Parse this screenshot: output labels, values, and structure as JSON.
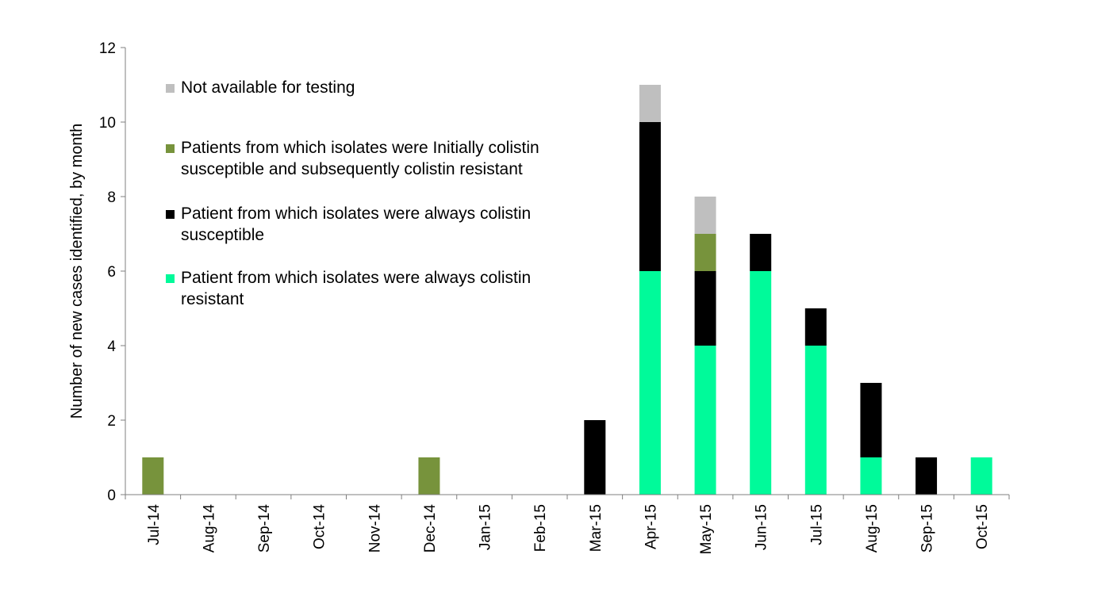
{
  "chart_data": {
    "type": "bar",
    "stacked": true,
    "title": "",
    "xlabel": "",
    "ylabel": "Number of new cases identified, by month",
    "ylim": [
      0,
      12
    ],
    "yticks": [
      0,
      2,
      4,
      6,
      8,
      10,
      12
    ],
    "grid": false,
    "legend_position": "top-left",
    "categories": [
      "Jul-14",
      "Aug-14",
      "Sep-14",
      "Oct-14",
      "Nov-14",
      "Dec-14",
      "Jan-15",
      "Feb-15",
      "Mar-15",
      "Apr-15",
      "May-15",
      "Jun-15",
      "Jul-15",
      "Aug-15",
      "Sep-15",
      "Oct-15"
    ],
    "series": [
      {
        "name": "Patient from which isolates were always colistin resistant",
        "color": "#00FA9A",
        "values": [
          0,
          0,
          0,
          0,
          0,
          0,
          0,
          0,
          0,
          6,
          4,
          6,
          4,
          1,
          0,
          1
        ]
      },
      {
        "name": "Patient from which isolates were always colistin susceptible",
        "color": "#000000",
        "values": [
          0,
          0,
          0,
          0,
          0,
          0,
          0,
          0,
          2,
          4,
          2,
          1,
          1,
          2,
          1,
          0
        ]
      },
      {
        "name": "Patients from which isolates were Initially colistin susceptible and subsequently colistin resistant",
        "color": "#77933C",
        "values": [
          1,
          0,
          0,
          0,
          0,
          1,
          0,
          0,
          0,
          0,
          1,
          0,
          0,
          0,
          0,
          0
        ]
      },
      {
        "name": "Not available for testing",
        "color": "#BFBFBF",
        "values": [
          0,
          0,
          0,
          0,
          0,
          0,
          0,
          0,
          0,
          1,
          1,
          0,
          0,
          0,
          0,
          0
        ]
      }
    ]
  },
  "legend": [
    {
      "color": "#BFBFBF",
      "lines": [
        "Not available for testing"
      ]
    },
    {
      "color": "#77933C",
      "lines": [
        "Patients from which isolates were Initially colistin",
        "susceptible and subsequently colistin resistant"
      ]
    },
    {
      "color": "#000000",
      "lines": [
        "Patient from which isolates were always colistin",
        "susceptible"
      ]
    },
    {
      "color": "#00FA9A",
      "lines": [
        "Patient from which isolates were always colistin",
        "resistant"
      ]
    }
  ]
}
